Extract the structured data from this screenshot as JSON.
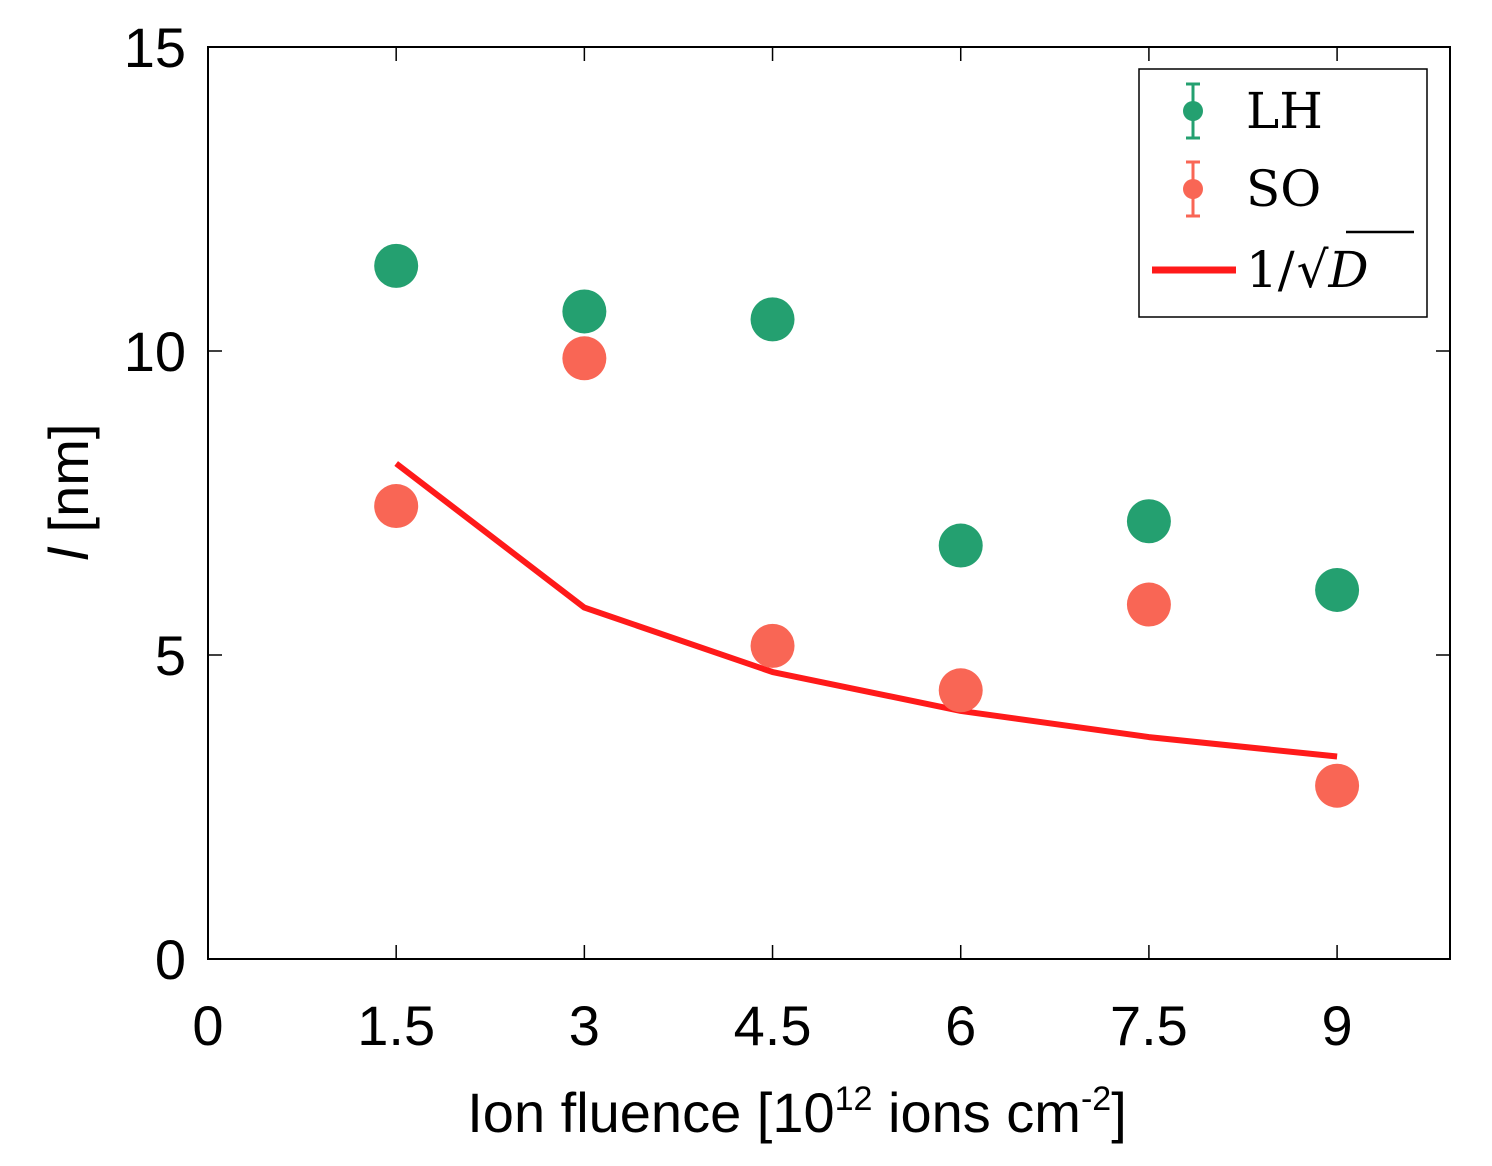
{
  "chart_data": {
    "type": "scatter",
    "title": "",
    "xlabel": {
      "main": "Ion fluence [10",
      "sup1": "12",
      "middle": " ions cm",
      "sup2": "-2",
      "end": "]"
    },
    "ylabel": {
      "symbol": "l",
      "unit": " [nm]"
    },
    "xlim": [
      0,
      9.9
    ],
    "ylim": [
      0,
      15
    ],
    "x_ticks": [
      0,
      1.5,
      3,
      4.5,
      6,
      7.5,
      9
    ],
    "x_tick_labels": [
      "0",
      "1.5",
      "3",
      "4.5",
      "6",
      "7.5",
      "9"
    ],
    "y_ticks": [
      0,
      5,
      10,
      15
    ],
    "y_tick_labels": [
      "0",
      "5",
      "10",
      "15"
    ],
    "grid": false,
    "legend_position": "top-right",
    "colors": {
      "LH": "#24a070",
      "SO": "#f96655",
      "fit": "#ff1a1a"
    },
    "series": [
      {
        "name": "LH",
        "kind": "points",
        "x": [
          1.5,
          3,
          4.5,
          6,
          7.5,
          9
        ],
        "y": [
          11.4,
          10.65,
          10.52,
          6.8,
          7.2,
          6.07
        ]
      },
      {
        "name": "SO",
        "kind": "points",
        "x": [
          1.5,
          3,
          4.5,
          6,
          7.5,
          9
        ],
        "y": [
          7.45,
          9.88,
          5.15,
          4.42,
          5.83,
          2.85
        ]
      },
      {
        "name": "1/√D",
        "kind": "line",
        "x": [
          1.5,
          3,
          4.5,
          6,
          7.5,
          9
        ],
        "y": [
          8.15,
          5.78,
          4.72,
          4.08,
          3.65,
          3.33
        ]
      }
    ],
    "legend": {
      "entries": [
        "LH",
        "SO",
        "1/√D"
      ],
      "line_label_numerator": "1/",
      "line_label_radicand": "D"
    }
  }
}
